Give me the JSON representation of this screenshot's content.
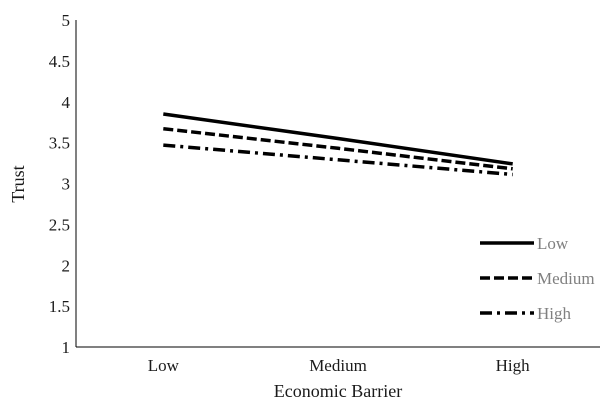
{
  "chart_data": {
    "type": "line",
    "title": "",
    "xlabel": "Economic Barrier",
    "ylabel": "Trust",
    "categories": [
      "Low",
      "Medium",
      "High"
    ],
    "ylim": [
      1,
      5
    ],
    "yticks": [
      "1",
      "1.5",
      "2",
      "2.5",
      "3",
      "3.5",
      "4",
      "4.5",
      "5"
    ],
    "grid": false,
    "legend_position": "bottom-right",
    "series": [
      {
        "name": "Low",
        "values": [
          3.85,
          3.55,
          3.24
        ],
        "line_style": "solid",
        "color": "#000000"
      },
      {
        "name": "Medium",
        "values": [
          3.67,
          3.43,
          3.18
        ],
        "line_style": "dashed",
        "color": "#000000"
      },
      {
        "name": "High",
        "values": [
          3.47,
          3.29,
          3.11
        ],
        "line_style": "dash-dot",
        "color": "#000000"
      }
    ]
  }
}
